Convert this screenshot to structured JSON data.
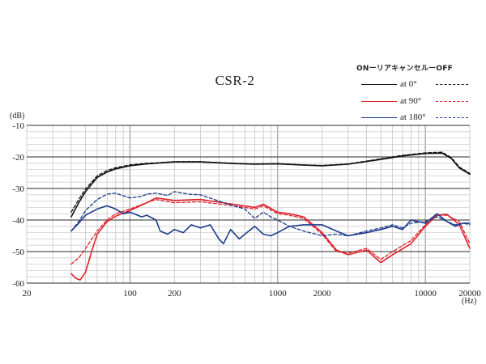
{
  "chart_data": {
    "type": "line",
    "title": "CSR-2",
    "legend_header": "ONーリアキャンセルーOFF",
    "legend_placement": "top-right",
    "ylabel": "(dB)",
    "xlabel": "(Hz)",
    "x_scale": "log",
    "xlim": [
      20,
      20000
    ],
    "ylim": [
      -60,
      -10
    ],
    "grid": true,
    "x_ticks": [
      20,
      100,
      200,
      1000,
      2000,
      10000,
      20000
    ],
    "x_tick_labels": [
      "20",
      "100",
      "200",
      "1000",
      "2000",
      "10000",
      "20000"
    ],
    "y_ticks": [
      -10,
      -20,
      -30,
      -40,
      -50,
      -60
    ],
    "y_tick_labels": [
      "-10",
      "-20",
      "-30",
      "-40",
      "-50",
      "-60"
    ],
    "legend": [
      {
        "label": "at 0°",
        "color": "#111111"
      },
      {
        "label": "at 90°",
        "color": "#e0202a"
      },
      {
        "label": "at 180°",
        "color": "#1c3a8c"
      }
    ],
    "series": [
      {
        "name": "at 0°",
        "style": "solid",
        "color": "#111111",
        "x": [
          40,
          45,
          50,
          60,
          70,
          80,
          100,
          130,
          150,
          200,
          300,
          500,
          700,
          1000,
          1500,
          2000,
          3000,
          5000,
          7000,
          10000,
          13000,
          15000,
          17000,
          20000
        ],
        "y": [
          -39,
          -34.5,
          -31,
          -26.5,
          -24.8,
          -23.8,
          -22.8,
          -22.2,
          -22,
          -21.6,
          -21.6,
          -22.1,
          -22.3,
          -22.2,
          -22.6,
          -22.8,
          -22.3,
          -20.8,
          -19.7,
          -18.9,
          -18.8,
          -20.5,
          -23.5,
          -25.5
        ]
      },
      {
        "name": "at 0°",
        "style": "dashed",
        "color": "#111111",
        "x": [
          40,
          45,
          50,
          60,
          70,
          80,
          100,
          130,
          150,
          200,
          300,
          500,
          700,
          1000,
          1500,
          2000,
          3000,
          5000,
          7000,
          10000,
          13000,
          15000,
          17000,
          20000
        ],
        "y": [
          -37.5,
          -33.5,
          -30.2,
          -26,
          -24.3,
          -23.4,
          -22.5,
          -22,
          -21.9,
          -21.5,
          -21.5,
          -22,
          -22.2,
          -22.1,
          -22.5,
          -22.7,
          -22.2,
          -20.6,
          -19.5,
          -18.7,
          -18.5,
          -20.2,
          -23.2,
          -25.2
        ]
      },
      {
        "name": "at 90°",
        "style": "solid",
        "color": "#e0202a",
        "x": [
          40,
          43,
          46,
          50,
          55,
          60,
          70,
          80,
          100,
          130,
          150,
          200,
          300,
          500,
          700,
          800,
          1000,
          1200,
          1500,
          2000,
          2500,
          3000,
          4000,
          5000,
          6000,
          8000,
          10000,
          12000,
          14000,
          17000,
          20000
        ],
        "y": [
          -57,
          -58.5,
          -59,
          -56.5,
          -50,
          -44.5,
          -40.5,
          -38.8,
          -37,
          -34.5,
          -33,
          -33.8,
          -33.5,
          -35,
          -36,
          -35,
          -37.5,
          -38,
          -39,
          -44,
          -49.5,
          -51,
          -49.5,
          -53.5,
          -51,
          -47.5,
          -42,
          -38.5,
          -38.2,
          -41.5,
          -49
        ]
      },
      {
        "name": "at 90°",
        "style": "dashed",
        "color": "#e0202a",
        "x": [
          40,
          45,
          50,
          60,
          70,
          80,
          100,
          130,
          150,
          200,
          300,
          500,
          700,
          800,
          1000,
          1200,
          1500,
          2000,
          2500,
          3000,
          4000,
          5000,
          6000,
          8000,
          10000,
          12000,
          14000,
          17000,
          20000
        ],
        "y": [
          -54,
          -52,
          -49,
          -43.5,
          -40,
          -38,
          -36.5,
          -34.5,
          -33.5,
          -34.5,
          -34.2,
          -35.5,
          -36.5,
          -35.5,
          -38,
          -38.5,
          -39.5,
          -44.5,
          -50,
          -50.5,
          -49,
          -52.5,
          -50,
          -46.5,
          -41.5,
          -38.5,
          -38.5,
          -40.5,
          -47.5
        ]
      },
      {
        "name": "at 180°",
        "style": "solid",
        "color": "#1c3a8c",
        "x": [
          40,
          45,
          50,
          60,
          70,
          80,
          90,
          100,
          120,
          130,
          150,
          160,
          180,
          200,
          230,
          260,
          300,
          350,
          400,
          430,
          480,
          550,
          600,
          700,
          800,
          900,
          1000,
          1200,
          1500,
          2000,
          2500,
          3000,
          4000,
          5000,
          6000,
          7000,
          8000,
          10000,
          12000,
          14000,
          16000,
          18000,
          20000
        ],
        "y": [
          -43.5,
          -41,
          -38.5,
          -36.5,
          -35.5,
          -36.5,
          -38,
          -37.5,
          -39,
          -38.5,
          -40,
          -43.5,
          -44.5,
          -43,
          -44,
          -41.5,
          -42.5,
          -41.5,
          -46,
          -47.5,
          -43,
          -46,
          -44.5,
          -42,
          -44.5,
          -45,
          -44,
          -42,
          -41.5,
          -41.5,
          -43.5,
          -45,
          -44,
          -43,
          -42,
          -43,
          -40,
          -41,
          -38,
          -40.5,
          -42,
          -41,
          -41
        ]
      },
      {
        "name": "at 180°",
        "style": "dashed",
        "color": "#1c3a8c",
        "x": [
          40,
          45,
          50,
          60,
          70,
          80,
          90,
          100,
          120,
          130,
          150,
          180,
          200,
          250,
          300,
          400,
          500,
          600,
          700,
          800,
          900,
          1000,
          1200,
          1500,
          2000,
          2500,
          3000,
          4000,
          5000,
          6000,
          7000,
          8000,
          10000,
          12000,
          14000,
          16000,
          18000,
          20000
        ],
        "y": [
          -43.5,
          -40.5,
          -37,
          -33.5,
          -31.8,
          -31.5,
          -32.3,
          -33,
          -32.5,
          -31.8,
          -31.5,
          -32.2,
          -31,
          -31.8,
          -32,
          -34,
          -35.5,
          -36.5,
          -39.5,
          -37.5,
          -39,
          -40,
          -42,
          -43.5,
          -45,
          -44.5,
          -45,
          -43.5,
          -42.5,
          -41.5,
          -42.5,
          -41,
          -40.5,
          -39,
          -40.5,
          -41.5,
          -41,
          -41.5
        ]
      }
    ]
  }
}
